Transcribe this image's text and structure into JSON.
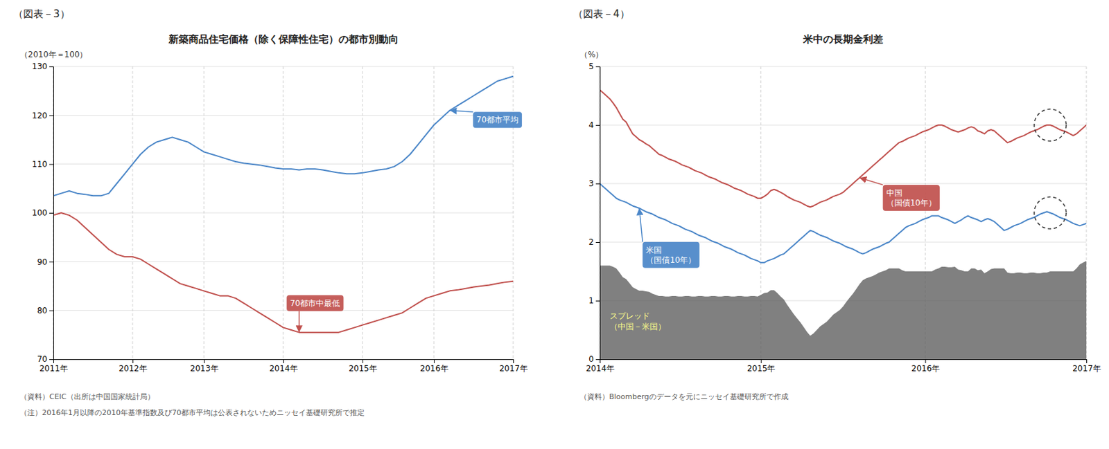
{
  "chart_data": [
    {
      "type": "line",
      "header": "（図表－3）",
      "title": "新築商品住宅価格（除く保障性住宅）の都市別動向",
      "ylabel": "（2010年＝100）",
      "categories": [
        "2011年",
        null,
        null,
        null,
        null,
        null,
        null,
        null,
        null,
        null,
        "2012年",
        null,
        null,
        null,
        null,
        null,
        null,
        null,
        null,
        "2013年",
        null,
        null,
        null,
        null,
        null,
        null,
        null,
        null,
        null,
        "2014年",
        null,
        null,
        null,
        null,
        null,
        null,
        null,
        null,
        null,
        "2015年",
        null,
        null,
        null,
        null,
        null,
        null,
        null,
        null,
        "2016年",
        null,
        null,
        null,
        null,
        null,
        null,
        null,
        null,
        null,
        "2017年"
      ],
      "series": [
        {
          "name": "70都市平均",
          "color": "#4a86c8",
          "values": [
            103.5,
            104.0,
            104.5,
            104.0,
            103.8,
            103.5,
            103.5,
            104.0,
            106.0,
            108.0,
            110.0,
            112.0,
            113.5,
            114.5,
            115.0,
            115.5,
            115.0,
            114.5,
            113.5,
            112.5,
            112.0,
            111.5,
            111.0,
            110.5,
            110.2,
            110.0,
            109.8,
            109.5,
            109.2,
            109.0,
            109.0,
            108.8,
            109.0,
            109.0,
            108.8,
            108.5,
            108.2,
            108.0,
            108.0,
            108.2,
            108.5,
            108.8,
            109.0,
            109.5,
            110.5,
            112.0,
            114.0,
            116.0,
            118.0,
            119.5,
            121.0,
            122.0,
            123.0,
            124.0,
            125.0,
            126.0,
            127.0,
            127.5,
            128.0
          ]
        },
        {
          "name": "70都市中最低",
          "color": "#c0504d",
          "values": [
            99.5,
            100.0,
            99.5,
            98.5,
            97.0,
            95.5,
            94.0,
            92.5,
            91.5,
            91.0,
            91.0,
            90.5,
            89.5,
            88.5,
            87.5,
            86.5,
            85.5,
            85.0,
            84.5,
            84.0,
            83.5,
            83.0,
            83.0,
            82.5,
            81.5,
            80.5,
            79.5,
            78.5,
            77.5,
            76.5,
            76.0,
            75.5,
            75.5,
            75.5,
            75.5,
            75.5,
            75.5,
            76.0,
            76.5,
            77.0,
            77.5,
            78.0,
            78.5,
            79.0,
            79.5,
            80.5,
            81.5,
            82.5,
            83.0,
            83.5,
            84.0,
            84.2,
            84.5,
            84.8,
            85.0,
            85.2,
            85.5,
            85.8,
            86.0
          ]
        }
      ],
      "ylim": [
        70,
        130
      ],
      "yticks": [
        70,
        80,
        90,
        100,
        110,
        120,
        130
      ],
      "grid": true,
      "notes": [
        "（資料）CEIC（出所は中国国家統計局）",
        "（注）2016年1月以降の2010年基準指数及び70都市平均は公表されないためニッセイ基礎研究所で推定"
      ]
    },
    {
      "type": "line",
      "header": "（図表－4）",
      "title": "米中の長期金利差",
      "ylabel": "（%）",
      "categories": [
        "2014年",
        null,
        null,
        null,
        null,
        null,
        null,
        null,
        null,
        null,
        null,
        null,
        null,
        null,
        null,
        null,
        null,
        null,
        null,
        null,
        null,
        null,
        null,
        null,
        null,
        null,
        null,
        null,
        null,
        null,
        null,
        null,
        null,
        null,
        null,
        null,
        null,
        null,
        null,
        null,
        null,
        null,
        null,
        null,
        null,
        null,
        null,
        null,
        null,
        "2015年",
        null,
        null,
        null,
        null,
        null,
        null,
        null,
        null,
        null,
        null,
        null,
        null,
        null,
        null,
        null,
        null,
        null,
        null,
        null,
        null,
        null,
        null,
        null,
        null,
        null,
        null,
        null,
        null,
        null,
        null,
        null,
        null,
        null,
        null,
        null,
        null,
        null,
        null,
        null,
        null,
        null,
        null,
        null,
        null,
        null,
        null,
        null,
        null,
        null,
        "2016年",
        null,
        null,
        null,
        null,
        null,
        null,
        null,
        null,
        null,
        null,
        null,
        null,
        null,
        null,
        null,
        null,
        null,
        null,
        null,
        null,
        null,
        null,
        null,
        null,
        null,
        null,
        null,
        null,
        null,
        null,
        null,
        null,
        null,
        null,
        null,
        null,
        null,
        null,
        null,
        null,
        null,
        null,
        null,
        null,
        null,
        null,
        null,
        null,
        "2017年"
      ],
      "series": [
        {
          "name": "スプレッド\n（中国－米国）",
          "type": "area",
          "color": "#606060",
          "values": [
            1.6,
            1.6,
            1.6,
            1.6,
            1.58,
            1.55,
            1.48,
            1.4,
            1.37,
            1.3,
            1.23,
            1.2,
            1.17,
            1.17,
            1.16,
            1.15,
            1.12,
            1.1,
            1.08,
            1.08,
            1.07,
            1.07,
            1.08,
            1.08,
            1.07,
            1.07,
            1.08,
            1.08,
            1.07,
            1.07,
            1.08,
            1.08,
            1.07,
            1.07,
            1.08,
            1.08,
            1.07,
            1.07,
            1.08,
            1.08,
            1.07,
            1.07,
            1.08,
            1.08,
            1.07,
            1.07,
            1.08,
            1.08,
            1.07,
            1.1,
            1.13,
            1.14,
            1.18,
            1.18,
            1.13,
            1.07,
            1.02,
            0.93,
            0.85,
            0.77,
            0.7,
            0.63,
            0.55,
            0.47,
            0.4,
            0.44,
            0.5,
            0.56,
            0.6,
            0.64,
            0.7,
            0.76,
            0.8,
            0.84,
            0.9,
            0.98,
            1.05,
            1.12,
            1.2,
            1.28,
            1.35,
            1.38,
            1.4,
            1.42,
            1.45,
            1.48,
            1.5,
            1.52,
            1.55,
            1.55,
            1.55,
            1.55,
            1.52,
            1.5,
            1.5,
            1.5,
            1.5,
            1.5,
            1.5,
            1.5,
            1.5,
            1.5,
            1.53,
            1.55,
            1.58,
            1.58,
            1.57,
            1.57,
            1.58,
            1.53,
            1.52,
            1.5,
            1.5,
            1.55,
            1.55,
            1.52,
            1.53,
            1.47,
            1.5,
            1.54,
            1.55,
            1.55,
            1.55,
            1.55,
            1.48,
            1.47,
            1.47,
            1.48,
            1.48,
            1.47,
            1.47,
            1.48,
            1.48,
            1.47,
            1.47,
            1.48,
            1.48,
            1.5,
            1.5,
            1.5,
            1.5,
            1.5,
            1.5,
            1.5,
            1.5,
            1.55,
            1.62,
            1.65,
            1.68
          ]
        },
        {
          "name": "中国\n（国債10年）",
          "type": "line",
          "color": "#c0504d",
          "values": [
            4.6,
            4.55,
            4.5,
            4.45,
            4.38,
            4.3,
            4.2,
            4.1,
            4.05,
            3.95,
            3.85,
            3.8,
            3.75,
            3.72,
            3.68,
            3.65,
            3.6,
            3.55,
            3.5,
            3.48,
            3.45,
            3.42,
            3.4,
            3.38,
            3.35,
            3.32,
            3.3,
            3.28,
            3.25,
            3.22,
            3.2,
            3.18,
            3.15,
            3.12,
            3.1,
            3.08,
            3.05,
            3.02,
            3.0,
            2.98,
            2.95,
            2.92,
            2.9,
            2.88,
            2.85,
            2.82,
            2.8,
            2.78,
            2.75,
            2.75,
            2.78,
            2.82,
            2.88,
            2.9,
            2.88,
            2.85,
            2.82,
            2.78,
            2.75,
            2.72,
            2.7,
            2.68,
            2.65,
            2.62,
            2.6,
            2.62,
            2.65,
            2.68,
            2.7,
            2.72,
            2.75,
            2.78,
            2.8,
            2.82,
            2.85,
            2.9,
            2.95,
            3.0,
            3.05,
            3.1,
            3.15,
            3.2,
            3.25,
            3.3,
            3.35,
            3.4,
            3.45,
            3.5,
            3.55,
            3.6,
            3.65,
            3.7,
            3.72,
            3.75,
            3.78,
            3.8,
            3.82,
            3.85,
            3.88,
            3.9,
            3.92,
            3.95,
            3.98,
            4.0,
            4.0,
            3.98,
            3.95,
            3.92,
            3.9,
            3.88,
            3.9,
            3.92,
            3.95,
            3.97,
            3.95,
            3.9,
            3.88,
            3.85,
            3.9,
            3.92,
            3.9,
            3.85,
            3.8,
            3.75,
            3.7,
            3.72,
            3.75,
            3.78,
            3.8,
            3.82,
            3.85,
            3.88,
            3.9,
            3.92,
            3.95,
            3.98,
            4.0,
            4.0,
            3.98,
            3.95,
            3.92,
            3.9,
            3.88,
            3.85,
            3.82,
            3.85,
            3.9,
            3.95,
            4.0
          ]
        },
        {
          "name": "米国\n（国債10年）",
          "type": "line",
          "color": "#4a86c8",
          "values": [
            3.0,
            2.95,
            2.9,
            2.85,
            2.8,
            2.75,
            2.72,
            2.7,
            2.68,
            2.65,
            2.62,
            2.6,
            2.58,
            2.55,
            2.52,
            2.5,
            2.48,
            2.45,
            2.42,
            2.4,
            2.38,
            2.35,
            2.32,
            2.3,
            2.28,
            2.25,
            2.22,
            2.2,
            2.18,
            2.15,
            2.12,
            2.1,
            2.08,
            2.05,
            2.02,
            2.0,
            1.98,
            1.95,
            1.92,
            1.9,
            1.88,
            1.85,
            1.82,
            1.8,
            1.78,
            1.75,
            1.72,
            1.7,
            1.68,
            1.65,
            1.65,
            1.68,
            1.7,
            1.72,
            1.75,
            1.78,
            1.8,
            1.85,
            1.9,
            1.95,
            2.0,
            2.05,
            2.1,
            2.15,
            2.2,
            2.18,
            2.15,
            2.12,
            2.1,
            2.08,
            2.05,
            2.02,
            2.0,
            1.98,
            1.95,
            1.92,
            1.9,
            1.88,
            1.85,
            1.82,
            1.8,
            1.82,
            1.85,
            1.88,
            1.9,
            1.92,
            1.95,
            1.98,
            2.0,
            2.05,
            2.1,
            2.15,
            2.2,
            2.25,
            2.28,
            2.3,
            2.32,
            2.35,
            2.38,
            2.4,
            2.42,
            2.45,
            2.45,
            2.45,
            2.42,
            2.4,
            2.38,
            2.35,
            2.32,
            2.35,
            2.38,
            2.42,
            2.45,
            2.42,
            2.4,
            2.38,
            2.35,
            2.38,
            2.4,
            2.38,
            2.35,
            2.3,
            2.25,
            2.2,
            2.22,
            2.25,
            2.28,
            2.3,
            2.32,
            2.35,
            2.38,
            2.4,
            2.42,
            2.45,
            2.48,
            2.5,
            2.52,
            2.5,
            2.48,
            2.45,
            2.42,
            2.4,
            2.38,
            2.35,
            2.32,
            2.3,
            2.28,
            2.3,
            2.32
          ]
        }
      ],
      "ylim": [
        0,
        5
      ],
      "yticks": [
        0,
        1,
        2,
        3,
        4,
        5
      ],
      "grid": true,
      "notes": [
        "（資料）Bloombergのデータを元にニッセイ基礎研究所で作成"
      ]
    }
  ]
}
